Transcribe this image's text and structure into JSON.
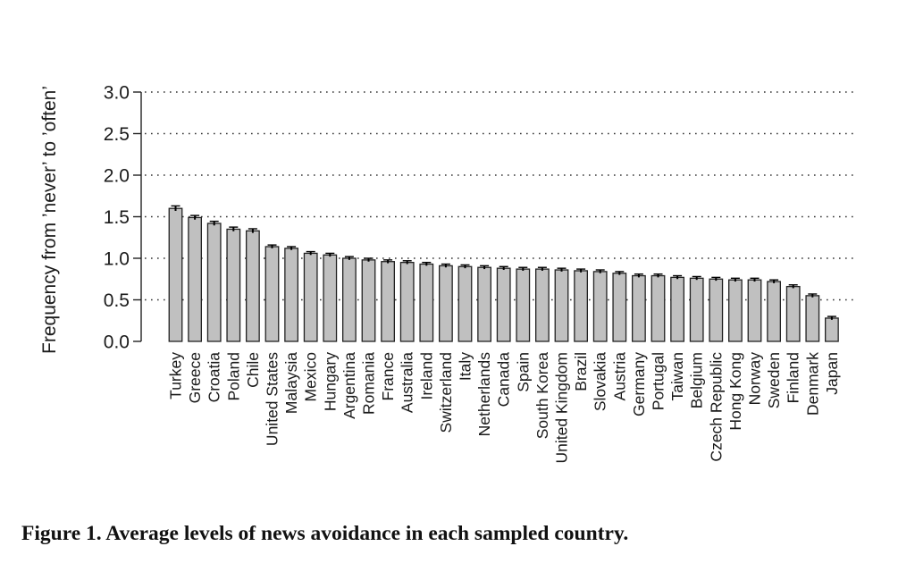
{
  "caption": "Figure 1.  Average levels of news avoidance in each sampled country.",
  "chart_data": {
    "type": "bar",
    "title": "",
    "xlabel": "",
    "ylabel": "Frequency from ’never’ to ’often’",
    "ylim": [
      0,
      3
    ],
    "yticks": [
      "0.0",
      "0.5",
      "1.0",
      "1.5",
      "2.0",
      "2.5",
      "3.0"
    ],
    "grid": "dotted horizontal",
    "error_bars": true,
    "colors": {
      "bar_fill": "#c0c0c0",
      "bar_stroke": "#222222",
      "grid": "#333333"
    },
    "categories": [
      "Turkey",
      "Greece",
      "Croatia",
      "Poland",
      "Chile",
      "United States",
      "Malaysia",
      "Mexico",
      "Hungary",
      "Argentina",
      "Romania",
      "France",
      "Australia",
      "Ireland",
      "Switzerland",
      "Italy",
      "Netherlands",
      "Canada",
      "Spain",
      "South Korea",
      "United Kingdom",
      "Brazil",
      "Slovakia",
      "Austria",
      "Germany",
      "Portugal",
      "Taiwan",
      "Belgium",
      "Czech Republic",
      "Hong  Kong",
      "Norway",
      "Sweden",
      "Finland",
      "Denmark",
      "Japan"
    ],
    "values": [
      1.6,
      1.49,
      1.42,
      1.35,
      1.33,
      1.14,
      1.12,
      1.06,
      1.04,
      1.0,
      0.98,
      0.96,
      0.95,
      0.93,
      0.91,
      0.9,
      0.89,
      0.88,
      0.87,
      0.87,
      0.86,
      0.85,
      0.84,
      0.82,
      0.79,
      0.79,
      0.77,
      0.76,
      0.75,
      0.74,
      0.74,
      0.72,
      0.66,
      0.55,
      0.28
    ],
    "errors": [
      0.03,
      0.025,
      0.025,
      0.025,
      0.025,
      0.02,
      0.02,
      0.02,
      0.02,
      0.02,
      0.02,
      0.02,
      0.02,
      0.02,
      0.02,
      0.02,
      0.02,
      0.02,
      0.02,
      0.02,
      0.02,
      0.02,
      0.02,
      0.02,
      0.02,
      0.02,
      0.02,
      0.02,
      0.02,
      0.02,
      0.02,
      0.02,
      0.02,
      0.02,
      0.02
    ]
  }
}
